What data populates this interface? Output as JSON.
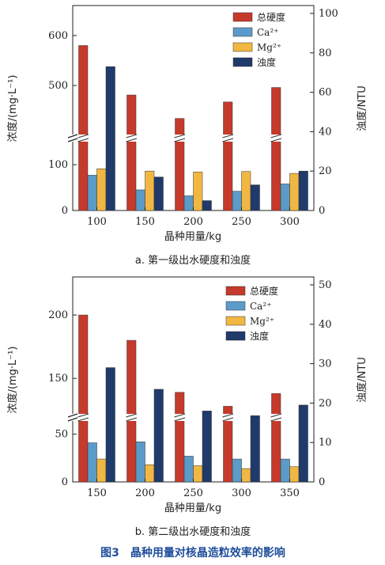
{
  "figure_title": "图3　晶种用量对核晶造粒效率的影响",
  "legend": [
    "总硬度",
    "Ca²⁺",
    "Mg²⁺",
    "浊度"
  ],
  "colors": {
    "total": "#c63a2b",
    "ca": "#5b9bc9",
    "mg": "#f2b742",
    "turb": "#1f3a6b"
  },
  "chart_data": [
    {
      "type": "bar",
      "caption": "a. 第一级出水硬度和浊度",
      "xlabel": "晶种用量/kg",
      "ylabel": "浓度/(mg·L⁻¹)",
      "y2label": "浊度/NTU",
      "categories": [
        "100",
        "150",
        "200",
        "250",
        "300"
      ],
      "y_lower_ticks": [
        "0",
        "100"
      ],
      "y_upper_ticks": [
        "500",
        "600"
      ],
      "y2_ticks": [
        "0",
        "20",
        "40",
        "60",
        "80",
        "100"
      ],
      "series": [
        {
          "name": "总硬度",
          "axis": "left",
          "values": [
            580,
            481,
            434,
            467,
            496
          ]
        },
        {
          "name": "Ca²⁺",
          "axis": "left",
          "values": [
            77,
            45,
            32,
            42,
            58
          ]
        },
        {
          "name": "Mg²⁺",
          "axis": "left",
          "values": [
            91,
            86,
            84,
            85,
            81
          ]
        },
        {
          "name": "浊度",
          "axis": "right",
          "values": [
            73,
            17,
            5,
            13,
            20
          ]
        }
      ]
    },
    {
      "type": "bar",
      "caption": "b. 第二级出水硬度和浊度",
      "xlabel": "晶种用量/kg",
      "ylabel": "浓度/(mg·L⁻¹)",
      "y2label": "浊度/NTU",
      "categories": [
        "150",
        "200",
        "250",
        "300",
        "350"
      ],
      "y_lower_ticks": [
        "0",
        "50"
      ],
      "y_upper_ticks": [
        "150",
        "200"
      ],
      "y2_ticks": [
        "0",
        "10",
        "20",
        "30",
        "40",
        "50"
      ],
      "series": [
        {
          "name": "总硬度",
          "axis": "left",
          "values": [
            200,
            180,
            139,
            128,
            138
          ]
        },
        {
          "name": "Ca²⁺",
          "axis": "left",
          "values": [
            41,
            42,
            27,
            24,
            24
          ]
        },
        {
          "name": "Mg²⁺",
          "axis": "left",
          "values": [
            24,
            18,
            17,
            14,
            16
          ]
        },
        {
          "name": "浊度",
          "axis": "right",
          "values": [
            29,
            23.5,
            18,
            16.8,
            19.5
          ]
        }
      ]
    }
  ]
}
